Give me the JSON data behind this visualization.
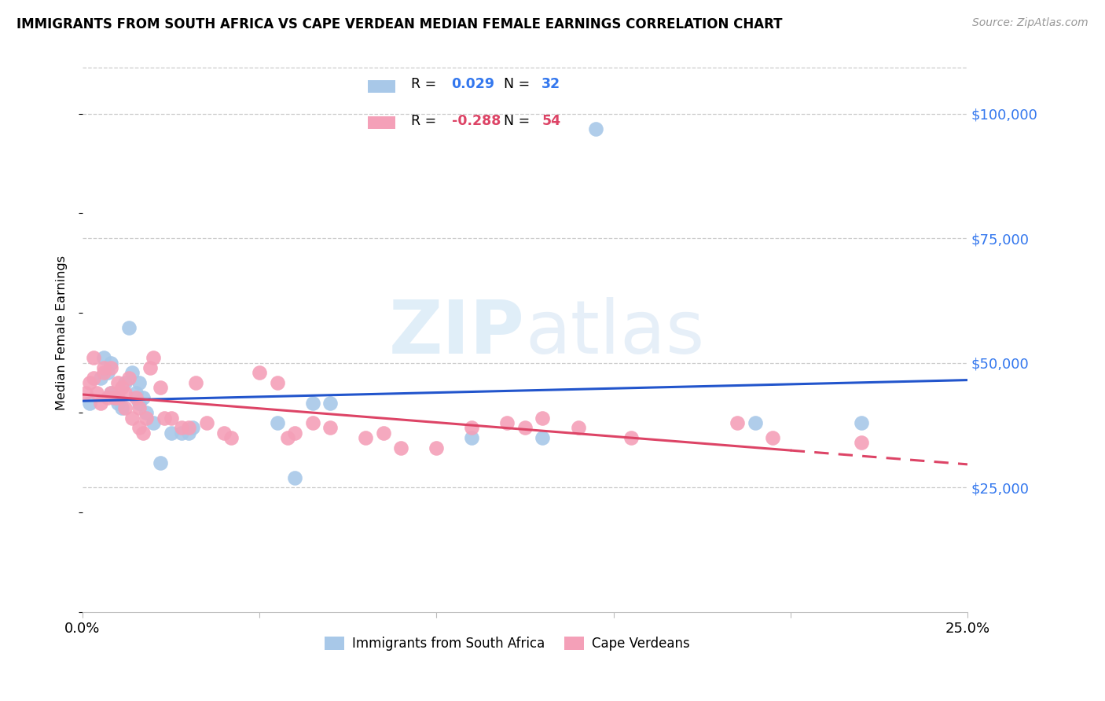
{
  "title": "IMMIGRANTS FROM SOUTH AFRICA VS CAPE VERDEAN MEDIAN FEMALE EARNINGS CORRELATION CHART",
  "source": "Source: ZipAtlas.com",
  "ylabel": "Median Female Earnings",
  "yticks": [
    0,
    25000,
    50000,
    75000,
    100000
  ],
  "ytick_labels": [
    "",
    "$25,000",
    "$50,000",
    "$75,000",
    "$100,000"
  ],
  "xlim": [
    0.0,
    0.25
  ],
  "ylim": [
    0,
    112000
  ],
  "r_blue": "0.029",
  "n_blue": "32",
  "r_pink": "-0.288",
  "n_pink": "54",
  "blue_color": "#a8c8e8",
  "pink_color": "#f4a0b8",
  "line_blue": "#2255cc",
  "line_pink": "#dd4466",
  "watermark_zip": "ZIP",
  "watermark_atlas": "atlas",
  "blue_scatter_x": [
    0.002,
    0.005,
    0.006,
    0.007,
    0.008,
    0.008,
    0.009,
    0.01,
    0.011,
    0.012,
    0.013,
    0.014,
    0.015,
    0.016,
    0.016,
    0.017,
    0.018,
    0.02,
    0.022,
    0.025,
    0.028,
    0.03,
    0.031,
    0.055,
    0.06,
    0.065,
    0.07,
    0.11,
    0.13,
    0.145,
    0.19,
    0.22
  ],
  "blue_scatter_y": [
    42000,
    47000,
    51000,
    48000,
    44000,
    50000,
    43000,
    42000,
    41000,
    46000,
    57000,
    48000,
    44000,
    46000,
    42000,
    43000,
    40000,
    38000,
    30000,
    36000,
    36000,
    36000,
    37000,
    38000,
    27000,
    42000,
    42000,
    35000,
    35000,
    97000,
    38000,
    38000
  ],
  "pink_scatter_x": [
    0.001,
    0.002,
    0.003,
    0.003,
    0.004,
    0.005,
    0.006,
    0.006,
    0.007,
    0.008,
    0.008,
    0.009,
    0.01,
    0.01,
    0.011,
    0.012,
    0.012,
    0.013,
    0.014,
    0.015,
    0.016,
    0.016,
    0.017,
    0.018,
    0.019,
    0.02,
    0.022,
    0.023,
    0.025,
    0.028,
    0.03,
    0.032,
    0.035,
    0.04,
    0.042,
    0.05,
    0.055,
    0.058,
    0.06,
    0.065,
    0.07,
    0.08,
    0.085,
    0.09,
    0.1,
    0.11,
    0.12,
    0.125,
    0.13,
    0.14,
    0.155,
    0.185,
    0.195,
    0.22
  ],
  "pink_scatter_y": [
    44000,
    46000,
    47000,
    51000,
    44000,
    42000,
    48000,
    49000,
    43000,
    44000,
    49000,
    43000,
    46000,
    43000,
    45000,
    44000,
    41000,
    47000,
    39000,
    43000,
    41000,
    37000,
    36000,
    39000,
    49000,
    51000,
    45000,
    39000,
    39000,
    37000,
    37000,
    46000,
    38000,
    36000,
    35000,
    48000,
    46000,
    35000,
    36000,
    38000,
    37000,
    35000,
    36000,
    33000,
    33000,
    37000,
    38000,
    37000,
    39000,
    37000,
    35000,
    38000,
    35000,
    34000
  ],
  "legend_label_blue": "Immigrants from South Africa",
  "legend_label_pink": "Cape Verdeans"
}
